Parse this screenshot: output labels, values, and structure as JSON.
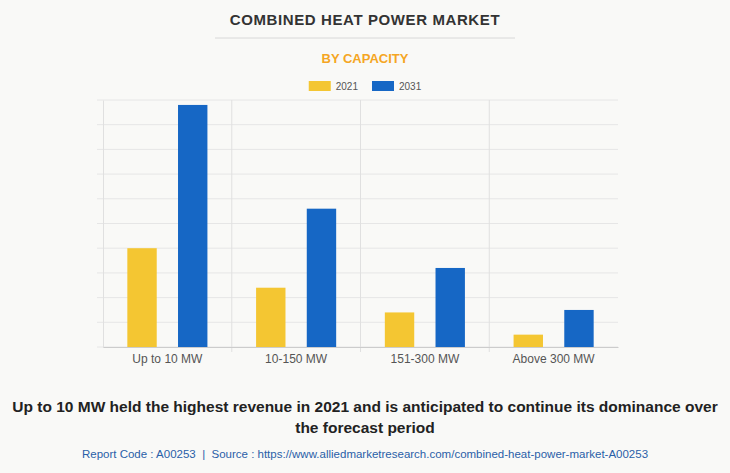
{
  "chart_data": {
    "type": "bar",
    "title": "COMBINED HEAT POWER MARKET",
    "subtitle": "BY CAPACITY",
    "caption": "Up to 10 MW held the highest revenue in 2021 and is anticipated to continue its dominance over the forecast period",
    "source": "Report Code : A00253  |  Source : https://www.alliedmarketresearch.com/combined-heat-power-market-A00253",
    "categories": [
      "Up to 10 MW",
      "10-150 MW",
      "151-300 MW",
      "Above 300 MW"
    ],
    "series": [
      {
        "name": "2021",
        "color": "#f4c632",
        "values": [
          4.0,
          2.4,
          1.4,
          0.5
        ]
      },
      {
        "name": "2031",
        "color": "#1667c5",
        "values": [
          9.8,
          5.6,
          3.2,
          1.5
        ]
      }
    ],
    "ylim": [
      0,
      10
    ],
    "yticks": [
      0,
      1,
      2,
      3,
      4,
      5,
      6,
      7,
      8,
      9,
      10
    ],
    "grid": true,
    "legend": "top",
    "tick_labels": "x"
  }
}
